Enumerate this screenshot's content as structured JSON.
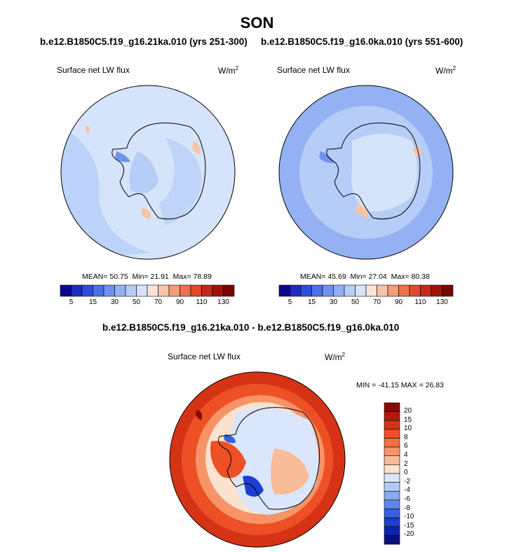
{
  "page": {
    "title": "SON",
    "left_case": "b.e12.B1850C5.f19_g16.21ka.010 (yrs 251-300)",
    "right_case": "b.e12.B1850C5.f19_g16.0ka.010 (yrs 551-600)",
    "diff_title": "b.e12.B1850C5.f19_g16.21ka.010 - b.e12.B1850C5.f19_g16.0ka.010"
  },
  "chart_data": [
    {
      "type": "contour-map",
      "projection": "south-polar-stereographic",
      "title": "Surface net LW flux",
      "units": "W/m",
      "units_sup": "2",
      "stats": {
        "mean_label": "MEAN=",
        "mean": "50.75",
        "min_label": "Min=",
        "min": "21.91",
        "max_label": "Max=",
        "max": "78.89"
      },
      "colorbar": {
        "levels": [
          5,
          10,
          15,
          20,
          30,
          40,
          50,
          60,
          70,
          80,
          90,
          100,
          110,
          120,
          130
        ],
        "tick_labels": [
          "5",
          "15",
          "30",
          "50",
          "70",
          "90",
          "110",
          "130"
        ],
        "colors": [
          "#0a0a8c",
          "#1f2bbf",
          "#2f4fd8",
          "#4a71e6",
          "#6f92ee",
          "#93b1f3",
          "#b6cdf7",
          "#d6e4fb",
          "#fbe4d8",
          "#f8c4a8",
          "#f39c77",
          "#ec7250",
          "#df4a2c",
          "#c42a17",
          "#9e1409",
          "#7a0303"
        ]
      }
    },
    {
      "type": "contour-map",
      "projection": "south-polar-stereographic",
      "title": "Surface net LW flux",
      "units": "W/m",
      "units_sup": "2",
      "stats": {
        "mean_label": "MEAN=",
        "mean": "45.69",
        "min_label": "Min=",
        "min": "27.04",
        "max_label": "Max=",
        "max": "80.38"
      },
      "colorbar": {
        "levels": [
          5,
          10,
          15,
          20,
          30,
          40,
          50,
          60,
          70,
          80,
          90,
          100,
          110,
          120,
          130
        ],
        "tick_labels": [
          "5",
          "15",
          "30",
          "50",
          "70",
          "90",
          "110",
          "130"
        ],
        "colors": [
          "#0a0a8c",
          "#1f2bbf",
          "#2f4fd8",
          "#4a71e6",
          "#6f92ee",
          "#93b1f3",
          "#b6cdf7",
          "#d6e4fb",
          "#fbe4d8",
          "#f8c4a8",
          "#f39c77",
          "#ec7250",
          "#df4a2c",
          "#c42a17",
          "#9e1409",
          "#7a0303"
        ]
      }
    },
    {
      "type": "contour-map-difference",
      "projection": "south-polar-stereographic",
      "title": "Surface net LW flux",
      "units": "W/m",
      "units_sup": "2",
      "stats_text": "MIN = -41.15 MAX = 26.83",
      "min": -41.15,
      "max": 26.83,
      "colorbar": {
        "tick_labels": [
          "20",
          "15",
          "10",
          "8",
          "6",
          "4",
          "2",
          "0",
          "-2",
          "-4",
          "-6",
          "-8",
          "-10",
          "-15",
          "-20"
        ],
        "colors_top_to_bottom": [
          "#8a0a06",
          "#b3180c",
          "#d63316",
          "#ec5024",
          "#f26f42",
          "#f69467",
          "#f9bb98",
          "#fde3cf",
          "#d9e6fb",
          "#b1cbf6",
          "#86a9f0",
          "#5d86e9",
          "#3761df",
          "#1c3ed3",
          "#0e22b0",
          "#07117a"
        ]
      }
    }
  ]
}
